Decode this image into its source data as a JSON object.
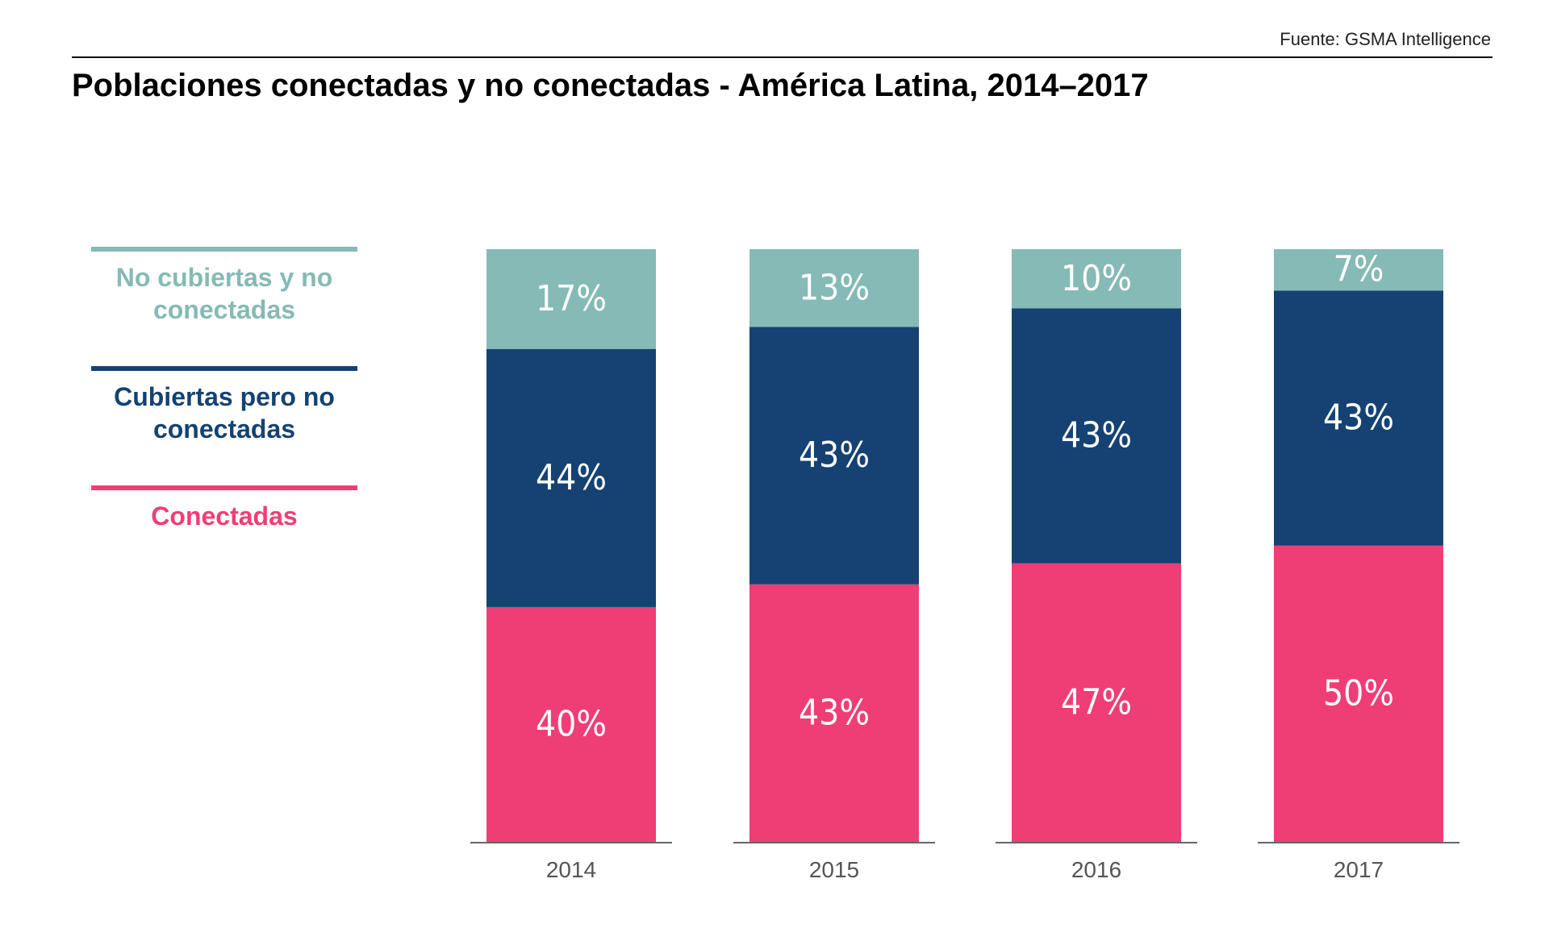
{
  "source": "Fuente: GSMA Intelligence",
  "chart_data": {
    "type": "bar",
    "stacked": true,
    "title": "Poblaciones conectadas y no conectadas - América Latina, 2014–2017",
    "categories": [
      "2014",
      "2015",
      "2016",
      "2017"
    ],
    "series": [
      {
        "name": "Conectadas",
        "color": "#ef3e75",
        "values": [
          40,
          43,
          47,
          50
        ],
        "labels": [
          "40%",
          "43%",
          "47%",
          "50%"
        ]
      },
      {
        "name": "Cubiertas pero no conectadas",
        "color": "#154273",
        "values": [
          44,
          43,
          43,
          43
        ],
        "labels": [
          "44%",
          "43%",
          "43%",
          "43%"
        ]
      },
      {
        "name": "No cubiertas y no conectadas",
        "color": "#85bab6",
        "values": [
          17,
          13,
          10,
          7
        ],
        "labels": [
          "17%",
          "13%",
          "10%",
          "7%"
        ]
      }
    ],
    "legend_order": [
      "No cubiertas y no conectadas",
      "Cubiertas pero no conectadas",
      "Conectadas"
    ],
    "legend_position": "left",
    "ylim": [
      0,
      100
    ],
    "grid": false,
    "xlabel": "",
    "ylabel": ""
  }
}
